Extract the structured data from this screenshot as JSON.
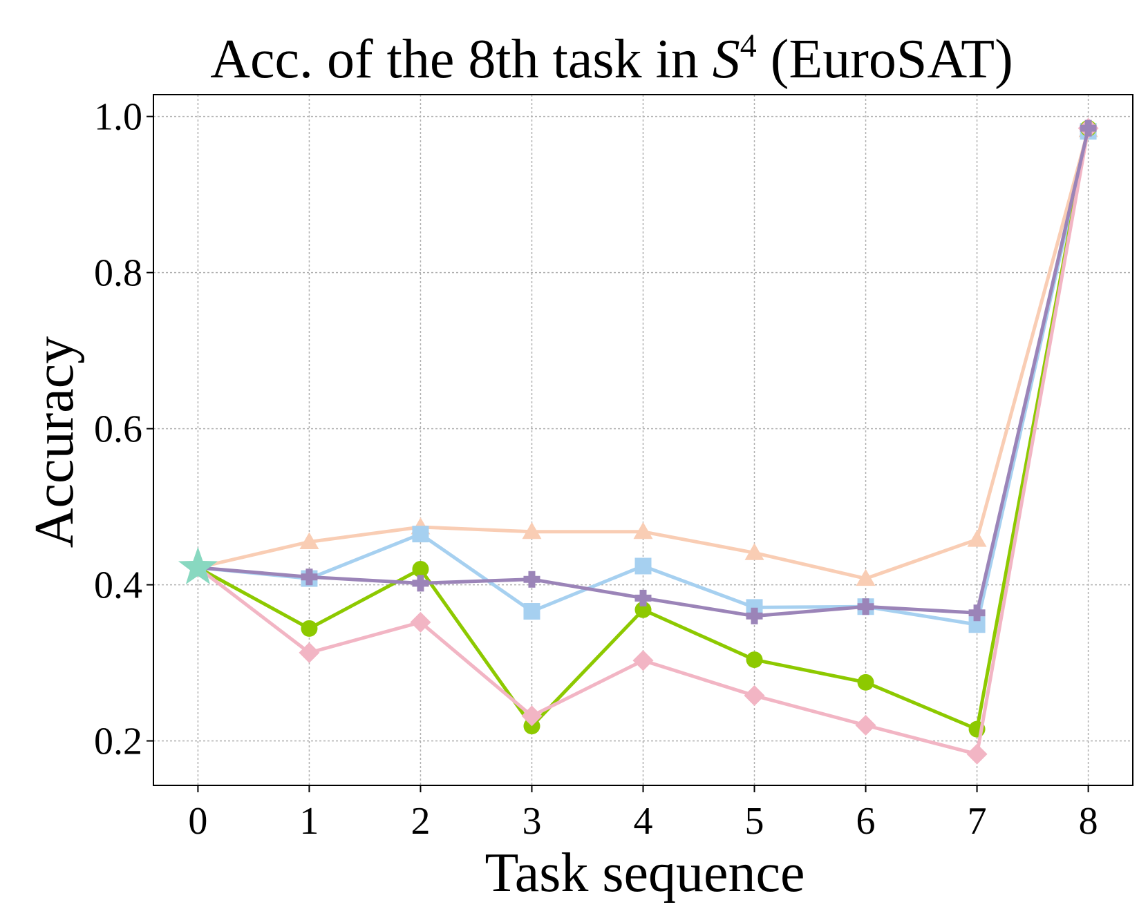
{
  "chart_data": {
    "type": "line",
    "title": "Acc. of the 8th task in",
    "title_symbol": "S",
    "title_superscript": "4",
    "title_suffix": " (EuroSAT)",
    "xlabel": "Task sequence",
    "ylabel": "Accuracy",
    "x": [
      0,
      1,
      2,
      3,
      4,
      5,
      6,
      7,
      8
    ],
    "x_tick_labels": [
      "0",
      "1",
      "2",
      "3",
      "4",
      "5",
      "6",
      "7",
      "8"
    ],
    "y_ticks": [
      0.2,
      0.4,
      0.6,
      0.8,
      1.0
    ],
    "y_tick_labels": [
      "0.2",
      "0.4",
      "0.6",
      "0.8",
      "1.0"
    ],
    "xlim": [
      -0.4,
      8.4
    ],
    "ylim": [
      0.143,
      1.028
    ],
    "grid": true,
    "start_point": {
      "x": 0,
      "y": 0.422,
      "color": "#88d8c0",
      "marker": "star"
    },
    "series": [
      {
        "color": "#f9cdb4",
        "marker": "triangle",
        "values": [
          0.422,
          0.455,
          0.474,
          0.468,
          0.468,
          0.441,
          0.408,
          0.458,
          0.983
        ]
      },
      {
        "color": "#a6d0f0",
        "marker": "square",
        "values": [
          0.422,
          0.408,
          0.465,
          0.366,
          0.424,
          0.371,
          0.372,
          0.349,
          0.981
        ]
      },
      {
        "color": "#8dc900",
        "marker": "circle",
        "values": [
          0.422,
          0.344,
          0.42,
          0.219,
          0.368,
          0.304,
          0.275,
          0.215,
          0.985
        ]
      },
      {
        "color": "#f2b5c4",
        "marker": "diamond",
        "values": [
          0.422,
          0.313,
          0.352,
          0.232,
          0.303,
          0.258,
          0.22,
          0.183,
          0.985
        ]
      },
      {
        "color": "#9b84b8",
        "marker": "plus",
        "values": [
          0.422,
          0.41,
          0.402,
          0.407,
          0.383,
          0.36,
          0.372,
          0.364,
          0.985
        ]
      }
    ]
  }
}
